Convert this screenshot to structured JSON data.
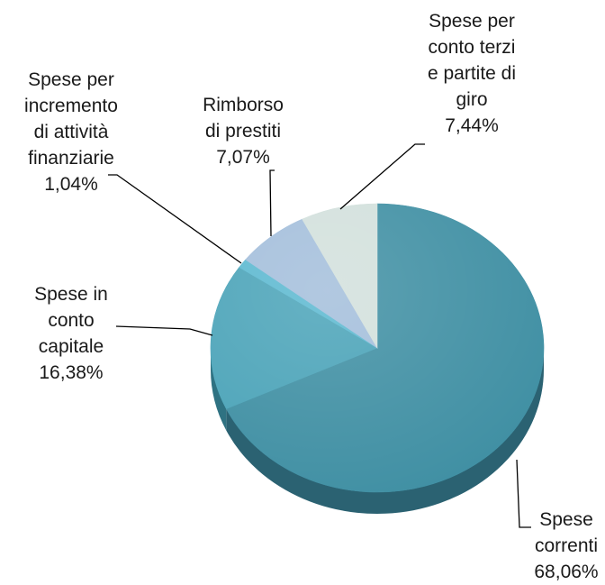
{
  "chart_data": {
    "type": "pie",
    "title": "",
    "style": "3d-tilted",
    "slices": [
      {
        "name": "Spese correnti",
        "label_lines": [
          "Spese",
          "correnti",
          "68,06%"
        ],
        "value": 68.06,
        "value_label": "68,06%",
        "color": "#3f8fa3",
        "side_color": "#2b6272"
      },
      {
        "name": "Spese in conto capitale",
        "label_lines": [
          "Spese in",
          "conto",
          "capitale",
          "16,38%"
        ],
        "value": 16.38,
        "value_label": "16,38%",
        "color": "#4aa3b8",
        "side_color": "#2f7282"
      },
      {
        "name": "Spese per incremento di attività finanziarie",
        "label_lines": [
          "Spese per",
          "incremento",
          "di attività",
          "finanziarie",
          "1,04%"
        ],
        "value": 1.04,
        "value_label": "1,04%",
        "color": "#5bb8d0",
        "side_color": "#3a8599"
      },
      {
        "name": "Rimborso di prestiti",
        "label_lines": [
          "Rimborso",
          "di prestiti",
          "7,07%"
        ],
        "value": 7.07,
        "value_label": "7,07%",
        "color": "#a3bedb",
        "side_color": "#7690ad"
      },
      {
        "name": "Spese per conto terzi e partite di giro",
        "label_lines": [
          "Spese per",
          "conto terzi",
          "e partite di",
          "giro",
          "7,44%"
        ],
        "value": 7.44,
        "value_label": "7,44%",
        "color": "#d2e0dc",
        "side_color": "#a5b5b0"
      }
    ]
  }
}
